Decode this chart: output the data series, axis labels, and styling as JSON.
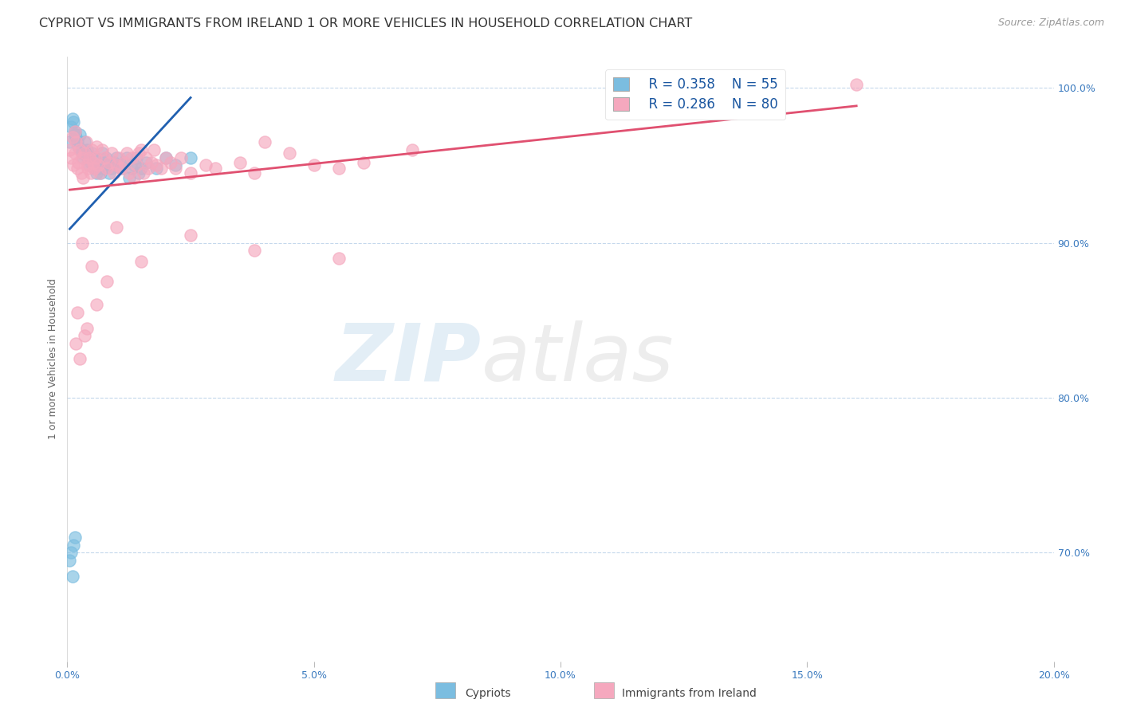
{
  "title": "CYPRIOT VS IMMIGRANTS FROM IRELAND 1 OR MORE VEHICLES IN HOUSEHOLD CORRELATION CHART",
  "source": "Source: ZipAtlas.com",
  "ylabel": "1 or more Vehicles in Household",
  "legend_R_cypriot": "R = 0.358",
  "legend_N_cypriot": "N = 55",
  "legend_R_ireland": "R = 0.286",
  "legend_N_ireland": "N = 80",
  "cypriot_color": "#7bbde0",
  "ireland_color": "#f5a8be",
  "trendline_cypriot_color": "#2060b0",
  "trendline_ireland_color": "#e05070",
  "watermark_zip": "ZIP",
  "watermark_atlas": "atlas",
  "xmin": 0.0,
  "xmax": 20.0,
  "ymin": 63.0,
  "ymax": 102.0,
  "x_tick_vals": [
    0,
    5,
    10,
    15,
    20
  ],
  "y_tick_vals": [
    70,
    80,
    90,
    100
  ],
  "title_fontsize": 11.5,
  "source_fontsize": 9,
  "tick_fontsize": 9,
  "ylabel_fontsize": 9,
  "legend_fontsize": 12,
  "cypriot_x": [
    0.05,
    0.08,
    0.1,
    0.12,
    0.15,
    0.15,
    0.18,
    0.2,
    0.22,
    0.25,
    0.28,
    0.3,
    0.32,
    0.35,
    0.38,
    0.4,
    0.42,
    0.45,
    0.48,
    0.5,
    0.55,
    0.58,
    0.6,
    0.62,
    0.65,
    0.68,
    0.7,
    0.72,
    0.75,
    0.78,
    0.8,
    0.85,
    0.9,
    0.95,
    1.0,
    1.05,
    1.1,
    1.15,
    1.2,
    1.25,
    1.3,
    1.35,
    1.4,
    1.45,
    1.5,
    1.6,
    1.8,
    2.0,
    2.2,
    2.5,
    0.05,
    0.08,
    0.1,
    0.12,
    0.15
  ],
  "cypriot_y": [
    96.5,
    97.5,
    98.0,
    97.8,
    97.2,
    97.0,
    96.8,
    96.5,
    96.2,
    97.0,
    96.0,
    95.8,
    95.5,
    96.5,
    95.8,
    96.0,
    95.5,
    95.0,
    95.2,
    95.8,
    94.8,
    95.5,
    94.5,
    94.8,
    95.0,
    94.5,
    95.8,
    95.2,
    94.8,
    95.5,
    95.0,
    94.5,
    94.8,
    95.2,
    95.5,
    95.0,
    94.8,
    95.2,
    95.5,
    94.2,
    94.8,
    95.0,
    95.5,
    94.5,
    94.8,
    95.2,
    94.8,
    95.5,
    95.0,
    95.5,
    69.5,
    70.0,
    68.5,
    70.5,
    71.0
  ],
  "ireland_x": [
    0.05,
    0.08,
    0.1,
    0.12,
    0.15,
    0.15,
    0.18,
    0.2,
    0.22,
    0.25,
    0.28,
    0.3,
    0.32,
    0.35,
    0.38,
    0.4,
    0.42,
    0.45,
    0.48,
    0.5,
    0.52,
    0.55,
    0.58,
    0.6,
    0.62,
    0.65,
    0.7,
    0.75,
    0.8,
    0.85,
    0.9,
    0.95,
    1.0,
    1.05,
    1.1,
    1.15,
    1.2,
    1.25,
    1.3,
    1.35,
    1.4,
    1.45,
    1.5,
    1.55,
    1.6,
    1.65,
    1.7,
    1.75,
    1.8,
    1.9,
    2.0,
    2.1,
    2.2,
    2.3,
    2.5,
    2.8,
    3.0,
    3.5,
    3.8,
    4.0,
    4.5,
    5.0,
    5.5,
    6.0,
    7.0,
    0.3,
    0.5,
    0.8,
    1.0,
    1.5,
    2.5,
    3.8,
    5.5,
    0.2,
    0.4,
    0.6,
    0.18,
    0.25,
    0.35,
    16.0
  ],
  "ireland_y": [
    96.0,
    95.5,
    96.8,
    95.0,
    97.2,
    95.8,
    96.5,
    94.8,
    95.2,
    96.0,
    94.5,
    95.5,
    94.2,
    95.8,
    96.5,
    95.0,
    94.8,
    95.5,
    94.5,
    96.0,
    95.2,
    94.8,
    95.5,
    96.2,
    95.0,
    94.5,
    96.0,
    95.5,
    94.8,
    95.2,
    95.8,
    94.5,
    95.0,
    95.5,
    94.8,
    95.2,
    95.8,
    94.5,
    95.5,
    94.2,
    95.0,
    95.8,
    96.0,
    94.5,
    95.5,
    94.8,
    95.2,
    96.0,
    95.0,
    94.8,
    95.5,
    95.2,
    94.8,
    95.5,
    94.5,
    95.0,
    94.8,
    95.2,
    94.5,
    96.5,
    95.8,
    95.0,
    94.8,
    95.2,
    96.0,
    90.0,
    88.5,
    87.5,
    91.0,
    88.8,
    90.5,
    89.5,
    89.0,
    85.5,
    84.5,
    86.0,
    83.5,
    82.5,
    84.0,
    100.2
  ]
}
